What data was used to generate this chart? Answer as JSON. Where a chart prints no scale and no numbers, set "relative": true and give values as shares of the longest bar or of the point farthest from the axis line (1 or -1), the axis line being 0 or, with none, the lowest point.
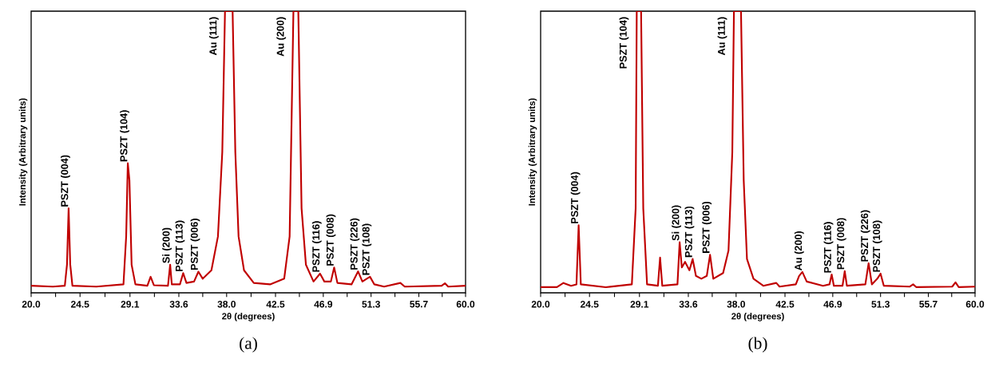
{
  "chart_data": [
    {
      "type": "line",
      "title": "(a)",
      "xlabel": "2θ (degrees)",
      "ylabel": "Intensity (Arbitrary units)",
      "relative": true,
      "xlim": [
        20,
        60
      ],
      "xticks": [
        {
          "value": 20,
          "label": "20.0"
        },
        {
          "value": 22.25,
          "label": null
        },
        {
          "value": 24.5,
          "label": "24.5"
        },
        {
          "value": 26.8,
          "label": null
        },
        {
          "value": 29.1,
          "label": "29.1"
        },
        {
          "value": 31.35,
          "label": null
        },
        {
          "value": 33.6,
          "label": "33.6"
        },
        {
          "value": 35.8,
          "label": null
        },
        {
          "value": 38.0,
          "label": "38.0"
        },
        {
          "value": 40.25,
          "label": null
        },
        {
          "value": 42.5,
          "label": "42.5"
        },
        {
          "value": 44.7,
          "label": null
        },
        {
          "value": 46.9,
          "label": "46.9"
        },
        {
          "value": 49.1,
          "label": null
        },
        {
          "value": 51.3,
          "label": "51.3"
        },
        {
          "value": 53.5,
          "label": null
        },
        {
          "value": 55.7,
          "label": "55.7"
        },
        {
          "value": 57.85,
          "label": null
        },
        {
          "value": 60.0,
          "label": "60.0"
        }
      ],
      "series": [
        {
          "color": "#c00000",
          "x": [
            20,
            22,
            23.1,
            23.3,
            23.45,
            23.6,
            23.8,
            26,
            28.5,
            28.75,
            28.9,
            29.05,
            29.25,
            29.6,
            30.7,
            31.0,
            31.3,
            32.6,
            32.8,
            32.95,
            33.7,
            34.0,
            34.3,
            35.0,
            35.4,
            35.8,
            36.6,
            37.2,
            37.6,
            37.85,
            38.55,
            38.8,
            39.1,
            39.6,
            40.5,
            42,
            43.3,
            43.8,
            44.15,
            44.6,
            44.9,
            45.3,
            46.0,
            46.6,
            47.0,
            47.6,
            47.9,
            48.2,
            49.5,
            50.1,
            50.5,
            50.9,
            51.2,
            51.6,
            52.5,
            54.0,
            54.4,
            57.8,
            58.1,
            58.4,
            60
          ],
          "values": [
            0.025,
            0.022,
            0.025,
            0.1,
            0.3,
            0.1,
            0.025,
            0.022,
            0.03,
            0.2,
            0.46,
            0.4,
            0.1,
            0.03,
            0.025,
            0.057,
            0.027,
            0.025,
            0.1,
            0.03,
            0.03,
            0.07,
            0.035,
            0.04,
            0.075,
            0.05,
            0.08,
            0.2,
            0.5,
            1.0,
            1.0,
            0.5,
            0.2,
            0.08,
            0.035,
            0.03,
            0.05,
            0.2,
            1.0,
            1.0,
            0.3,
            0.1,
            0.04,
            0.068,
            0.04,
            0.04,
            0.09,
            0.035,
            0.03,
            0.076,
            0.04,
            0.05,
            0.057,
            0.03,
            0.022,
            0.035,
            0.022,
            0.025,
            0.034,
            0.022,
            0.025
          ]
        }
      ],
      "annotations": [
        {
          "text": "PSZT (004)",
          "x": 23.45,
          "y": 0.3
        },
        {
          "text": "PSZT (104)",
          "x": 28.9,
          "y": 0.46
        },
        {
          "text": "Si (200)",
          "x": 32.8,
          "y": 0.1
        },
        {
          "text": "PSZT (113)",
          "x": 34.0,
          "y": 0.07
        },
        {
          "text": "PSZT (006)",
          "x": 35.4,
          "y": 0.075
        },
        {
          "text": "Au (111)",
          "x": 38.2,
          "y": 1.0
        },
        {
          "text": "Au (200)",
          "x": 44.4,
          "y": 1.0
        },
        {
          "text": "PSZT (116)",
          "x": 46.6,
          "y": 0.068
        },
        {
          "text": "PSZT (008)",
          "x": 47.9,
          "y": 0.09
        },
        {
          "text": "PSZT (226)",
          "x": 50.1,
          "y": 0.076
        },
        {
          "text": "PSZT (108)",
          "x": 51.2,
          "y": 0.057
        }
      ]
    },
    {
      "type": "line",
      "title": "(b)",
      "xlabel": "2θ (degrees)",
      "ylabel": "Intensity (Arbitrary units)",
      "relative": true,
      "xlim": [
        20,
        60
      ],
      "xticks": [
        {
          "value": 20,
          "label": "20.0"
        },
        {
          "value": 22.25,
          "label": null
        },
        {
          "value": 24.5,
          "label": "24.5"
        },
        {
          "value": 26.8,
          "label": null
        },
        {
          "value": 29.1,
          "label": "29.1"
        },
        {
          "value": 31.35,
          "label": null
        },
        {
          "value": 33.6,
          "label": "33.6"
        },
        {
          "value": 35.8,
          "label": null
        },
        {
          "value": 38.0,
          "label": "38.0"
        },
        {
          "value": 40.25,
          "label": null
        },
        {
          "value": 42.5,
          "label": "42.5"
        },
        {
          "value": 44.7,
          "label": null
        },
        {
          "value": 46.9,
          "label": "46.9"
        },
        {
          "value": 49.1,
          "label": null
        },
        {
          "value": 51.3,
          "label": "51.3"
        },
        {
          "value": 53.5,
          "label": null
        },
        {
          "value": 55.7,
          "label": "55.7"
        },
        {
          "value": 57.85,
          "label": null
        },
        {
          "value": 60.0,
          "label": "60.0"
        }
      ],
      "series": [
        {
          "color": "#c00000",
          "x": [
            20,
            21.5,
            22.1,
            22.8,
            23.3,
            23.5,
            23.7,
            26,
            28.4,
            28.75,
            28.85,
            29.25,
            29.45,
            29.8,
            30.8,
            31.0,
            31.2,
            32.6,
            32.8,
            33.0,
            33.3,
            33.7,
            34.0,
            34.3,
            34.8,
            35.3,
            35.6,
            35.9,
            36.8,
            37.3,
            37.65,
            37.8,
            38.45,
            38.7,
            39.0,
            39.6,
            40.5,
            41.7,
            42.0,
            43.5,
            43.8,
            44.1,
            44.5,
            46.0,
            46.6,
            46.8,
            47.0,
            47.8,
            48.0,
            48.2,
            49.9,
            50.2,
            50.5,
            51.0,
            51.3,
            51.6,
            54.0,
            54.3,
            54.6,
            57.9,
            58.2,
            58.5,
            60
          ],
          "values": [
            0.02,
            0.02,
            0.035,
            0.025,
            0.03,
            0.24,
            0.03,
            0.02,
            0.03,
            0.3,
            1.0,
            1.0,
            0.3,
            0.03,
            0.025,
            0.125,
            0.025,
            0.03,
            0.18,
            0.09,
            0.11,
            0.08,
            0.12,
            0.06,
            0.05,
            0.06,
            0.135,
            0.05,
            0.07,
            0.15,
            0.5,
            1.0,
            1.0,
            0.4,
            0.12,
            0.05,
            0.025,
            0.035,
            0.022,
            0.03,
            0.06,
            0.074,
            0.04,
            0.025,
            0.03,
            0.065,
            0.025,
            0.025,
            0.077,
            0.025,
            0.03,
            0.105,
            0.03,
            0.05,
            0.068,
            0.025,
            0.022,
            0.03,
            0.02,
            0.022,
            0.037,
            0.02,
            0.022
          ]
        }
      ],
      "annotations": [
        {
          "text": "PSZT (004)",
          "x": 23.5,
          "y": 0.24
        },
        {
          "text": "PSZT (104)",
          "x": 29.05,
          "y": 1.0
        },
        {
          "text": "Si (200)",
          "x": 32.8,
          "y": 0.18
        },
        {
          "text": "PSZT (113)",
          "x": 34.0,
          "y": 0.12
        },
        {
          "text": "PSZT (006)",
          "x": 35.6,
          "y": 0.135
        },
        {
          "text": "Au (111)",
          "x": 38.1,
          "y": 1.0
        },
        {
          "text": "Au (200)",
          "x": 44.1,
          "y": 0.074
        },
        {
          "text": "PSZT (116)",
          "x": 46.8,
          "y": 0.065
        },
        {
          "text": "PSZT (008)",
          "x": 48.0,
          "y": 0.077
        },
        {
          "text": "PSZT (226)",
          "x": 50.2,
          "y": 0.105
        },
        {
          "text": "PSZT (108)",
          "x": 51.3,
          "y": 0.068
        }
      ]
    }
  ]
}
